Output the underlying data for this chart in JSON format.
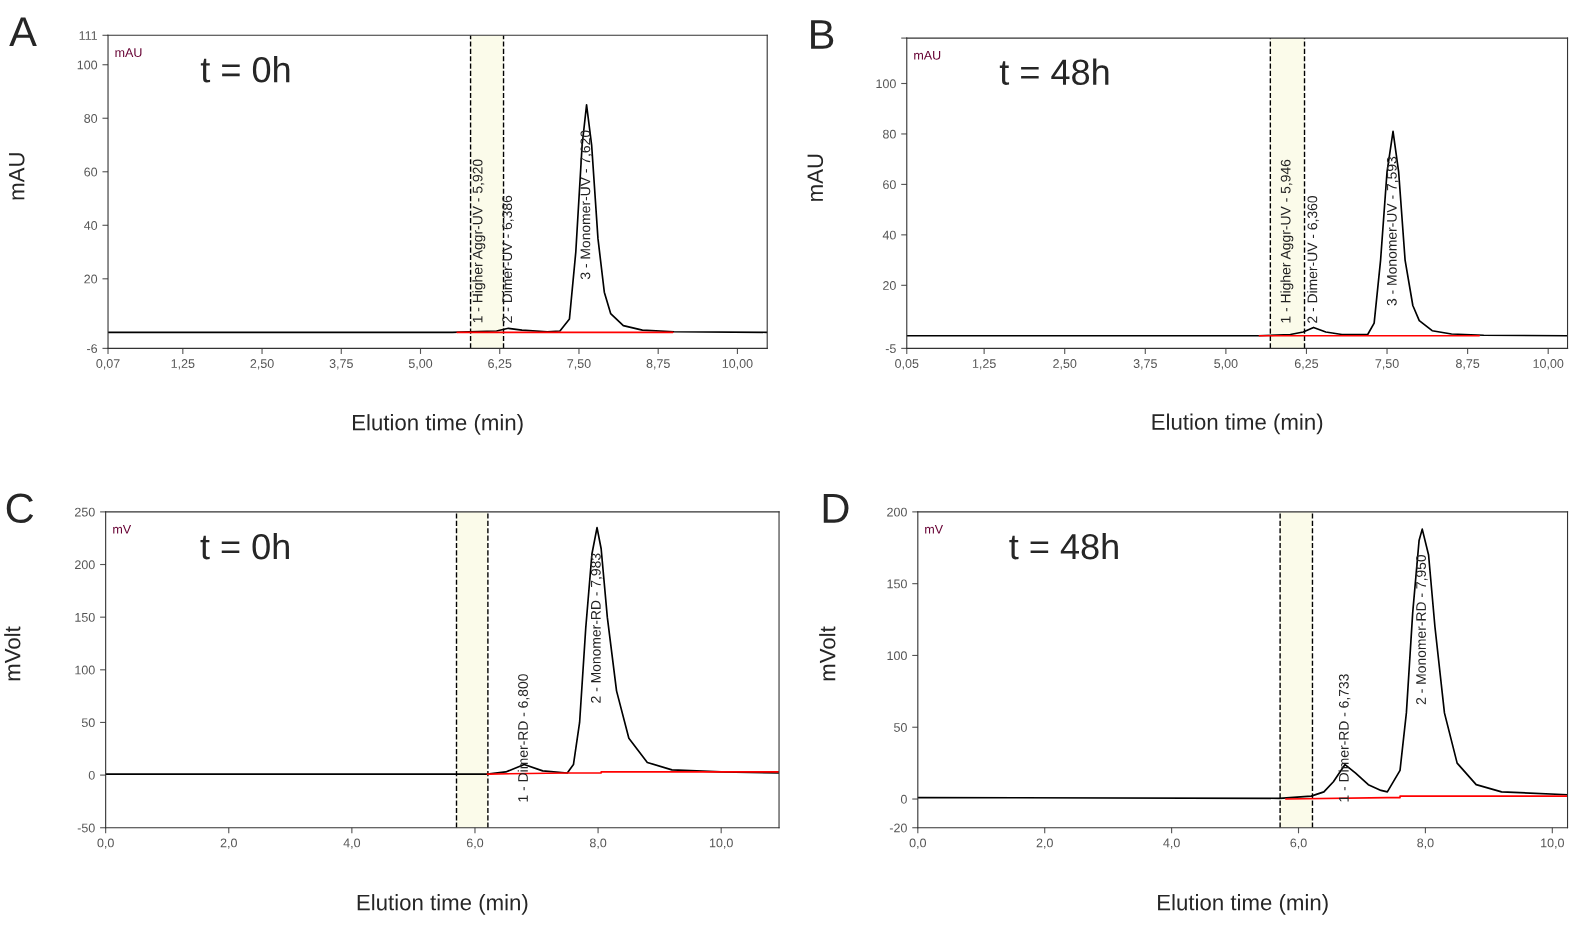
{
  "chart_data": [
    {
      "type": "line",
      "xlabel": "Elution time (min)",
      "ylabel": "mAU",
      "annotations": [
        "A",
        "t = 0h",
        "mAU",
        {
          "text": "1 - Higher Aggr-UV - 5,920",
          "x": 5.92,
          "y": 0.3
        },
        {
          "text": "2 - Dimer-UV - 6,386",
          "x": 6.386,
          "y": 1.5
        },
        {
          "text": "3 - Monomer-UV - 7,620",
          "x": 7.62,
          "y": 85
        }
      ],
      "series": [
        {
          "color": "#000000",
          "x": [
            0.07,
            5.5,
            5.9,
            6.2,
            6.386,
            6.6,
            7.0,
            7.2,
            7.35,
            7.45,
            7.55,
            7.62,
            7.7,
            7.8,
            7.9,
            8.0,
            8.2,
            8.5,
            9.0,
            10.47
          ],
          "values": [
            0,
            0,
            0.3,
            0.5,
            1.5,
            0.8,
            0.2,
            0.5,
            5,
            30,
            70,
            85,
            70,
            35,
            15,
            7,
            2.5,
            0.8,
            0.2,
            0
          ]
        },
        {
          "color": "#ff0000",
          "x": [
            5.58,
            8.98
          ],
          "values": [
            0,
            0
          ]
        }
      ],
      "bands": [
        {
          "axis": "x",
          "from": 5.79,
          "to": 6.31,
          "color": "#fbfbea"
        }
      ],
      "ref_lines": [
        {
          "axis": "x",
          "value": 5.79,
          "color": "#000000",
          "line_style": "dashed"
        },
        {
          "axis": "x",
          "value": 6.31,
          "color": "#000000",
          "line_style": "dashed"
        }
      ],
      "xlim": [
        0.07,
        10.47
      ],
      "ylim": [
        -6,
        111
      ],
      "xticks": [
        {
          "value": 0.07,
          "label": "0,07"
        },
        {
          "value": 1.25,
          "label": "1,25"
        },
        {
          "value": 2.5,
          "label": "2,50"
        },
        {
          "value": 3.75,
          "label": "3,75"
        },
        {
          "value": 5.0,
          "label": "5,00"
        },
        {
          "value": 6.25,
          "label": "6,25"
        },
        {
          "value": 7.5,
          "label": "7,50"
        },
        {
          "value": 8.75,
          "label": "8,75"
        },
        {
          "value": 10.0,
          "label": "10,00"
        }
      ],
      "yticks": [
        -6,
        20,
        40,
        60,
        80,
        100,
        111
      ],
      "grid": false,
      "legend": false
    },
    {
      "type": "line",
      "xlabel": "Elution time (min)",
      "ylabel": "mAU",
      "annotations": [
        "B",
        "t = 48h",
        "mAU",
        {
          "text": "1 - Higher Aggr-UV - 5,946",
          "x": 5.946,
          "y": 0.5
        },
        {
          "text": "2 - Dimer-UV - 6,360",
          "x": 6.36,
          "y": 3.3
        },
        {
          "text": "3 - Monomer-UV - 7,593",
          "x": 7.593,
          "y": 81
        }
      ],
      "series": [
        {
          "color": "#000000",
          "x": [
            0.05,
            5.5,
            6.0,
            6.2,
            6.36,
            6.55,
            6.8,
            7.2,
            7.3,
            7.4,
            7.5,
            7.593,
            7.68,
            7.78,
            7.9,
            8.0,
            8.2,
            8.5,
            9.0,
            10.3
          ],
          "values": [
            0,
            0,
            0.5,
            1.5,
            3.3,
            1.5,
            0.5,
            0.5,
            5,
            30,
            65,
            81,
            65,
            30,
            12,
            6,
            2,
            0.7,
            0.2,
            0
          ]
        },
        {
          "color": "#ff0000",
          "x": [
            5.52,
            8.93
          ],
          "values": [
            0,
            0
          ]
        }
      ],
      "bands": [
        {
          "axis": "x",
          "from": 5.69,
          "to": 6.22,
          "color": "#fbfbea"
        }
      ],
      "ref_lines": [
        {
          "axis": "x",
          "value": 5.69,
          "color": "#000000",
          "line_style": "dashed"
        },
        {
          "axis": "x",
          "value": 6.22,
          "color": "#000000",
          "line_style": "dashed"
        }
      ],
      "xlim": [
        0.05,
        10.3
      ],
      "ylim": [
        -5,
        118
      ],
      "xticks": [
        {
          "value": 0.05,
          "label": "0,05"
        },
        {
          "value": 1.25,
          "label": "1,25"
        },
        {
          "value": 2.5,
          "label": "2,50"
        },
        {
          "value": 3.75,
          "label": "3,75"
        },
        {
          "value": 5.0,
          "label": "5,00"
        },
        {
          "value": 6.25,
          "label": "6,25"
        },
        {
          "value": 7.5,
          "label": "7,50"
        },
        {
          "value": 8.75,
          "label": "8,75"
        },
        {
          "value": 10.0,
          "label": "10,00"
        }
      ],
      "yticks": [
        -5,
        20,
        40,
        60,
        80,
        100,
        {
          "value": 118,
          "label": null
        }
      ],
      "grid": false,
      "legend": false
    },
    {
      "type": "line",
      "xlabel": "Elution time (min)",
      "ylabel": "mVolt",
      "annotations": [
        "C",
        "t = 0h",
        "mV",
        {
          "text": "1 - Dimer-RD - 6,800",
          "x": 6.8,
          "y": 10
        },
        {
          "text": "2 - Monomer-RD - 7,983",
          "x": 7.983,
          "y": 235
        }
      ],
      "series": [
        {
          "color": "#000000",
          "x": [
            0,
            6.0,
            6.2,
            6.5,
            6.8,
            7.1,
            7.5,
            7.6,
            7.7,
            7.8,
            7.9,
            7.983,
            8.05,
            8.15,
            8.3,
            8.5,
            8.8,
            9.2,
            10.0,
            10.94
          ],
          "values": [
            1,
            1,
            1,
            3,
            10,
            4,
            2,
            10,
            50,
            140,
            210,
            235,
            215,
            150,
            80,
            35,
            12,
            5,
            3,
            2
          ]
        },
        {
          "color": "#ff0000",
          "x": [
            6.2,
            7.5,
            8.05,
            8.05,
            10.94
          ],
          "values": [
            1,
            2,
            2,
            3,
            3
          ]
        }
      ],
      "bands": [
        {
          "axis": "x",
          "from": 5.7,
          "to": 6.21,
          "color": "#fbfbea"
        }
      ],
      "ref_lines": [
        {
          "axis": "x",
          "value": 5.7,
          "color": "#000000",
          "line_style": "dashed"
        },
        {
          "axis": "x",
          "value": 6.21,
          "color": "#000000",
          "line_style": "dashed"
        }
      ],
      "xlim": [
        0,
        10.94
      ],
      "ylim": [
        -50,
        250
      ],
      "xticks": [
        {
          "value": 0,
          "label": "0,0"
        },
        {
          "value": 2,
          "label": "2,0"
        },
        {
          "value": 4,
          "label": "4,0"
        },
        {
          "value": 6,
          "label": "6,0"
        },
        {
          "value": 8,
          "label": "8,0"
        },
        {
          "value": 10,
          "label": "10,0"
        }
      ],
      "yticks": [
        -50,
        0,
        50,
        100,
        150,
        200,
        250
      ],
      "grid": false,
      "legend": false
    },
    {
      "type": "line",
      "xlabel": "Elution time (min)",
      "ylabel": "mVolt",
      "annotations": [
        "D",
        "t = 48h",
        "mV",
        {
          "text": "1 - Dimer-RD - 6,733",
          "x": 6.733,
          "y": 24
        },
        {
          "text": "2 - Monomer-RD - 7,950",
          "x": 7.95,
          "y": 188
        }
      ],
      "series": [
        {
          "color": "#000000",
          "x": [
            0,
            5.7,
            6.2,
            6.4,
            6.55,
            6.733,
            6.9,
            7.1,
            7.3,
            7.4,
            7.6,
            7.7,
            7.8,
            7.9,
            7.95,
            8.05,
            8.15,
            8.3,
            8.5,
            8.8,
            9.2,
            10.24
          ],
          "values": [
            1,
            0.5,
            2,
            5,
            12,
            24,
            18,
            10,
            6,
            5,
            20,
            60,
            130,
            180,
            188,
            170,
            120,
            60,
            25,
            10,
            5,
            3
          ]
        },
        {
          "color": "#ff0000",
          "x": [
            5.8,
            7.4,
            7.6,
            7.6,
            10.24
          ],
          "values": [
            0,
            1,
            1,
            2,
            2
          ]
        }
      ],
      "bands": [
        {
          "axis": "x",
          "from": 5.71,
          "to": 6.22,
          "color": "#fbfbea"
        }
      ],
      "ref_lines": [
        {
          "axis": "x",
          "value": 5.71,
          "color": "#000000",
          "line_style": "dashed"
        },
        {
          "axis": "x",
          "value": 6.22,
          "color": "#000000",
          "line_style": "dashed"
        }
      ],
      "xlim": [
        0,
        10.24
      ],
      "ylim": [
        -20,
        200
      ],
      "xticks": [
        {
          "value": 0,
          "label": "0,0"
        },
        {
          "value": 2,
          "label": "2,0"
        },
        {
          "value": 4,
          "label": "4,0"
        },
        {
          "value": 6,
          "label": "6,0"
        },
        {
          "value": 8,
          "label": "8,0"
        },
        {
          "value": 10,
          "label": "10,0"
        }
      ],
      "yticks": [
        -20,
        0,
        50,
        100,
        150,
        200
      ],
      "grid": false,
      "legend": false
    }
  ]
}
